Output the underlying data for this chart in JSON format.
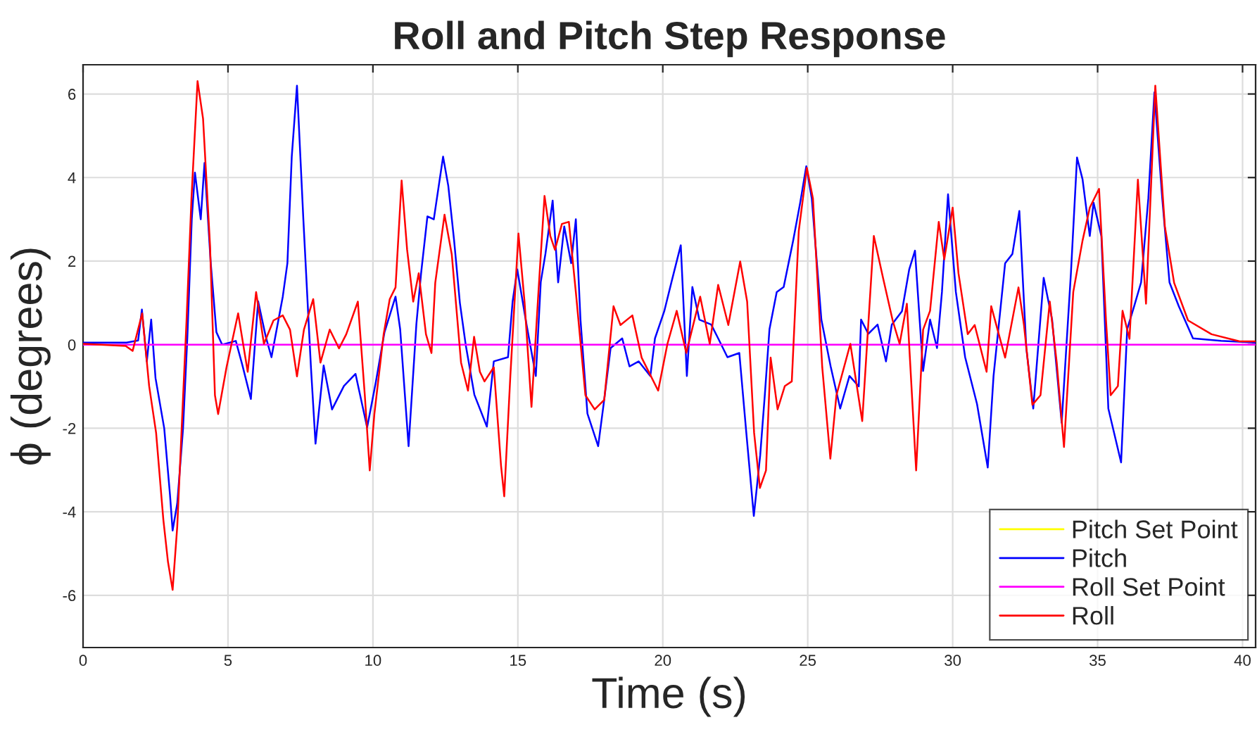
{
  "chart_data": {
    "type": "line",
    "title": "Roll and Pitch Step Response",
    "xlabel": "Time (s)",
    "ylabel": "ϕ (degrees)",
    "xlim": [
      0,
      40.45
    ],
    "ylim": [
      -7.25,
      6.7
    ],
    "xticks": [
      0,
      5,
      10,
      15,
      20,
      25,
      30,
      35,
      40
    ],
    "yticks": [
      -6,
      -4,
      -2,
      0,
      2,
      4,
      6
    ],
    "grid": true,
    "legend": "bottom right",
    "marker": "none",
    "line_style": "solid",
    "series": [
      {
        "name": "Pitch Set Point",
        "color": "#ffff00"
      },
      {
        "name": "Pitch",
        "color": "#0000ff",
        "x": [
          0,
          1.5,
          1.9,
          2.03,
          2.2,
          2.35,
          2.5,
          2.8,
          3.0,
          3.09,
          3.25,
          3.45,
          3.6,
          3.75,
          3.86,
          4.06,
          4.19,
          4.4,
          4.6,
          4.8,
          5.27,
          5.5,
          5.79,
          6.04,
          6.3,
          6.5,
          6.89,
          7.05,
          7.2,
          7.38,
          7.6,
          7.86,
          8.02,
          8.3,
          8.59,
          9.0,
          9.4,
          9.8,
          10.1,
          10.4,
          10.78,
          10.94,
          11.23,
          11.5,
          11.66,
          11.88,
          12.1,
          12.42,
          12.6,
          12.8,
          13.0,
          13.2,
          13.5,
          13.93,
          14.17,
          14.66,
          14.82,
          14.98,
          15.3,
          15.62,
          15.79,
          15.95,
          16.2,
          16.39,
          16.6,
          16.84,
          17.0,
          17.16,
          17.4,
          17.77,
          17.96,
          18.2,
          18.6,
          18.85,
          19.17,
          19.57,
          19.73,
          20.05,
          20.3,
          20.62,
          20.83,
          21.02,
          21.26,
          21.67,
          21.91,
          22.23,
          22.64,
          22.88,
          23.14,
          23.36,
          23.52,
          23.68,
          23.93,
          24.17,
          24.5,
          24.74,
          24.95,
          25.14,
          25.47,
          25.79,
          26.12,
          26.44,
          26.76,
          26.84,
          27.09,
          27.41,
          27.7,
          27.9,
          28.25,
          28.5,
          28.7,
          28.98,
          29.22,
          29.46,
          29.63,
          29.84,
          30.11,
          30.43,
          30.84,
          31.21,
          31.41,
          31.81,
          32.06,
          32.3,
          32.54,
          32.78,
          33.14,
          33.43,
          33.76,
          34.08,
          34.29,
          34.48,
          34.73,
          34.86,
          35.13,
          35.37,
          35.81,
          36.02,
          36.26,
          36.5,
          36.75,
          36.96,
          37.23,
          37.48,
          37.8,
          38.29,
          39.26,
          40.45
        ],
        "values": [
          0.05,
          0.05,
          0.1,
          0.84,
          -0.4,
          0.6,
          -0.8,
          -2.0,
          -3.6,
          -4.45,
          -3.8,
          -2.0,
          0.2,
          3.0,
          4.12,
          3.0,
          4.35,
          2.0,
          0.3,
          0.0,
          0.09,
          -0.5,
          -1.3,
          1.04,
          0.2,
          -0.3,
          1.15,
          1.95,
          4.5,
          6.2,
          3.0,
          -0.52,
          -2.37,
          -0.5,
          -1.55,
          -0.99,
          -0.7,
          -1.98,
          -0.9,
          0.3,
          1.15,
          0.37,
          -2.43,
          0.5,
          1.7,
          3.07,
          3.0,
          4.5,
          3.8,
          2.5,
          1.0,
          0.0,
          -1.2,
          -1.96,
          -0.4,
          -0.3,
          1.04,
          1.8,
          0.48,
          -0.75,
          1.5,
          2.17,
          3.45,
          1.49,
          2.83,
          1.95,
          3.0,
          0.6,
          -1.65,
          -2.43,
          -1.42,
          -0.08,
          0.15,
          -0.52,
          -0.4,
          -0.75,
          0.15,
          0.8,
          1.5,
          2.38,
          -0.75,
          1.38,
          0.6,
          0.48,
          0.15,
          -0.3,
          -0.2,
          -2.1,
          -4.1,
          -2.65,
          -1.2,
          0.37,
          1.26,
          1.38,
          2.5,
          3.4,
          4.27,
          3.5,
          0.6,
          -0.52,
          -1.53,
          -0.75,
          -1.0,
          0.6,
          0.26,
          0.48,
          -0.4,
          0.48,
          0.8,
          1.8,
          2.25,
          -0.63,
          0.6,
          -0.08,
          1.26,
          3.6,
          1.26,
          -0.3,
          -1.42,
          -2.94,
          -0.75,
          1.95,
          2.17,
          3.2,
          -0.08,
          -1.53,
          1.6,
          0.6,
          -1.87,
          1.72,
          4.48,
          3.96,
          2.6,
          3.4,
          2.6,
          -1.53,
          -2.82,
          0.37,
          0.92,
          1.49,
          3.5,
          6.04,
          3.5,
          1.49,
          0.92,
          0.15,
          0.09,
          0.05
        ]
      },
      {
        "name": "Roll Set Point",
        "color": "#ff00ff",
        "x": [
          0,
          40.45
        ],
        "values": [
          0,
          0
        ]
      },
      {
        "name": "Roll",
        "color": "#ff0000",
        "x": [
          0,
          1.47,
          1.71,
          2.04,
          2.28,
          2.52,
          2.77,
          2.93,
          3.09,
          3.25,
          3.57,
          3.74,
          3.95,
          4.14,
          4.38,
          4.55,
          4.66,
          4.95,
          5.35,
          5.68,
          5.97,
          6.24,
          6.57,
          6.89,
          7.14,
          7.38,
          7.62,
          7.94,
          8.19,
          8.51,
          8.83,
          9.08,
          9.48,
          9.72,
          9.89,
          10.05,
          10.37,
          10.58,
          10.78,
          10.99,
          11.18,
          11.39,
          11.58,
          11.83,
          12.02,
          12.15,
          12.47,
          12.72,
          13.04,
          13.28,
          13.49,
          13.69,
          13.85,
          14.17,
          14.42,
          14.53,
          14.74,
          15.02,
          15.23,
          15.47,
          15.71,
          15.92,
          16.12,
          16.28,
          16.52,
          16.76,
          17.0,
          17.33,
          17.65,
          17.98,
          18.3,
          18.54,
          18.95,
          19.27,
          19.84,
          20.16,
          20.48,
          20.81,
          21.29,
          21.62,
          21.91,
          22.26,
          22.67,
          22.91,
          23.15,
          23.35,
          23.56,
          23.72,
          23.96,
          24.21,
          24.45,
          24.69,
          24.97,
          25.18,
          25.5,
          25.78,
          25.99,
          26.47,
          26.88,
          27.28,
          27.6,
          27.93,
          28.17,
          28.42,
          28.74,
          28.98,
          29.22,
          29.52,
          29.71,
          30.0,
          30.2,
          30.52,
          30.76,
          31.17,
          31.33,
          31.81,
          32.27,
          32.46,
          32.75,
          33.03,
          33.35,
          33.59,
          33.84,
          34.16,
          34.48,
          34.73,
          35.05,
          35.29,
          35.45,
          35.7,
          35.86,
          36.1,
          36.39,
          36.67,
          36.99,
          37.32,
          37.64,
          38.12,
          38.93,
          39.9,
          40.45
        ],
        "values": [
          0.02,
          -0.03,
          -0.15,
          0.75,
          -0.99,
          -2.11,
          -4.19,
          -5.2,
          -5.87,
          -4.35,
          0.58,
          3.5,
          6.31,
          5.41,
          2.38,
          -1.21,
          -1.66,
          -0.54,
          0.75,
          -0.65,
          1.26,
          0.02,
          0.58,
          0.7,
          0.36,
          -0.76,
          0.36,
          1.09,
          -0.43,
          0.36,
          -0.09,
          0.25,
          1.03,
          -1.21,
          -3.01,
          -1.66,
          0.25,
          1.09,
          1.37,
          3.93,
          2.27,
          1.03,
          1.71,
          0.25,
          -0.2,
          1.48,
          3.11,
          2.16,
          -0.43,
          -1.1,
          0.19,
          -0.65,
          -0.88,
          -0.54,
          -2.9,
          -3.63,
          -0.76,
          2.66,
          1.03,
          -1.49,
          1.26,
          3.56,
          2.6,
          2.27,
          2.89,
          2.94,
          1.26,
          -1.21,
          -1.55,
          -1.32,
          0.92,
          0.47,
          0.7,
          -0.31,
          -1.1,
          0.02,
          0.81,
          -0.2,
          1.15,
          0.02,
          1.43,
          0.47,
          1.99,
          1.03,
          -2.11,
          -3.43,
          -3.01,
          -0.31,
          -1.55,
          -0.99,
          -0.88,
          2.72,
          4.23,
          3.5,
          -0.54,
          -2.73,
          -1.21,
          0.02,
          -1.83,
          2.6,
          1.59,
          0.58,
          0.02,
          0.98,
          -3.01,
          0.36,
          0.81,
          2.94,
          2.04,
          3.28,
          1.71,
          0.25,
          0.47,
          -0.65,
          0.92,
          -0.31,
          1.37,
          0.47,
          -1.44,
          -1.21,
          1.03,
          -0.43,
          -2.45,
          1.26,
          2.49,
          3.28,
          3.73,
          0.58,
          -1.21,
          -0.99,
          0.81,
          0.14,
          3.95,
          0.98,
          6.2,
          2.83,
          1.48,
          0.58,
          0.25,
          0.08,
          0.08
        ]
      }
    ]
  }
}
